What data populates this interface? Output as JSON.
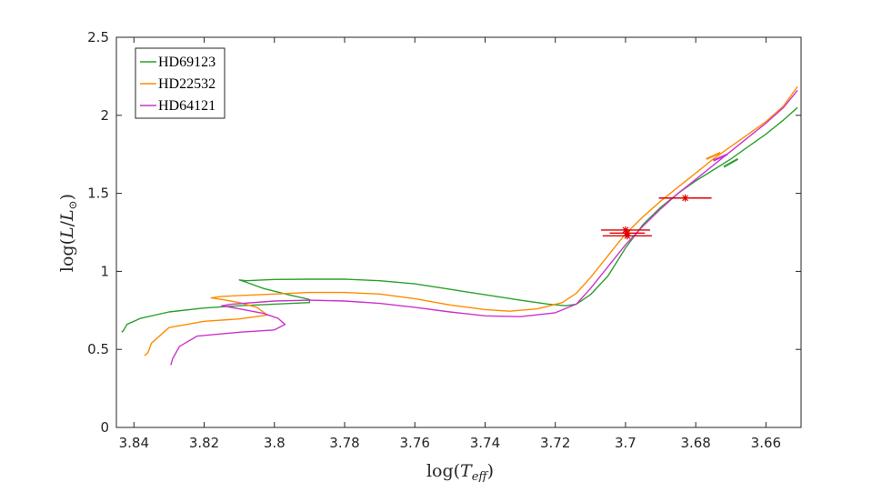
{
  "chart_data": {
    "type": "line",
    "title": "",
    "xlabel": "log(T_eff)",
    "ylabel": "log(L/L⊙)",
    "xlim": [
      3.65,
      3.845
    ],
    "ylim": [
      0,
      2.5
    ],
    "x_reversed": true,
    "xticks": [
      3.84,
      3.82,
      3.8,
      3.78,
      3.76,
      3.74,
      3.72,
      3.7,
      3.68,
      3.66
    ],
    "xtick_labels": [
      "3.84",
      "3.82",
      "3.8",
      "3.78",
      "3.76",
      "3.74",
      "3.72",
      "3.7",
      "3.68",
      "3.66"
    ],
    "yticks": [
      0,
      0.5,
      1,
      1.5,
      2,
      2.5
    ],
    "ytick_labels": [
      "0",
      "0.5",
      "1",
      "1.5",
      "2",
      "2.5"
    ],
    "grid": false,
    "legend_position": "top-left",
    "series": [
      {
        "name": "HD69123",
        "color": "#2ca02c",
        "x": [
          3.8435,
          3.843,
          3.842,
          3.838,
          3.83,
          3.82,
          3.81,
          3.79,
          3.79,
          3.796,
          3.803,
          3.808,
          3.81,
          3.808,
          3.8,
          3.79,
          3.78,
          3.77,
          3.76,
          3.75,
          3.74,
          3.73,
          3.722,
          3.717,
          3.714,
          3.71,
          3.705,
          3.7,
          3.695,
          3.69,
          3.685,
          3.68,
          3.675,
          3.67,
          3.665,
          3.66,
          3.655,
          3.651
        ],
        "y": [
          0.61,
          0.62,
          0.66,
          0.7,
          0.74,
          0.765,
          0.78,
          0.8,
          0.82,
          0.85,
          0.89,
          0.93,
          0.945,
          0.94,
          0.948,
          0.95,
          0.95,
          0.94,
          0.92,
          0.885,
          0.85,
          0.815,
          0.79,
          0.78,
          0.79,
          0.85,
          0.97,
          1.15,
          1.3,
          1.41,
          1.5,
          1.58,
          1.65,
          1.72,
          1.8,
          1.88,
          1.97,
          2.05
        ]
      },
      {
        "name": "HD22532",
        "color": "#ff8c00",
        "x": [
          3.837,
          3.836,
          3.835,
          3.83,
          3.82,
          3.81,
          3.802,
          3.805,
          3.81,
          3.815,
          3.818,
          3.815,
          3.8,
          3.79,
          3.78,
          3.77,
          3.76,
          3.75,
          3.74,
          3.733,
          3.725,
          3.718,
          3.714,
          3.71,
          3.705,
          3.7,
          3.695,
          3.69,
          3.685,
          3.68,
          3.675,
          3.67,
          3.665,
          3.66,
          3.655,
          3.651
        ],
        "y": [
          0.46,
          0.48,
          0.54,
          0.64,
          0.68,
          0.695,
          0.72,
          0.77,
          0.8,
          0.82,
          0.83,
          0.84,
          0.855,
          0.865,
          0.865,
          0.855,
          0.825,
          0.785,
          0.755,
          0.745,
          0.76,
          0.8,
          0.86,
          0.96,
          1.1,
          1.24,
          1.35,
          1.45,
          1.54,
          1.63,
          1.72,
          1.8,
          1.88,
          1.96,
          2.06,
          2.185
        ]
      },
      {
        "name": "HD64121",
        "color": "#cc33cc",
        "x": [
          3.8295,
          3.829,
          3.827,
          3.822,
          3.81,
          3.8,
          3.797,
          3.799,
          3.803,
          3.81,
          3.815,
          3.812,
          3.8,
          3.79,
          3.78,
          3.77,
          3.76,
          3.75,
          3.74,
          3.73,
          3.72,
          3.714,
          3.71,
          3.705,
          3.7,
          3.695,
          3.69,
          3.685,
          3.68,
          3.675,
          3.67,
          3.665,
          3.66,
          3.655,
          3.651
        ],
        "y": [
          0.4,
          0.44,
          0.52,
          0.585,
          0.61,
          0.625,
          0.66,
          0.7,
          0.73,
          0.76,
          0.78,
          0.79,
          0.81,
          0.815,
          0.81,
          0.795,
          0.77,
          0.74,
          0.715,
          0.71,
          0.735,
          0.79,
          0.89,
          1.03,
          1.17,
          1.29,
          1.4,
          1.5,
          1.59,
          1.68,
          1.77,
          1.86,
          1.95,
          2.05,
          2.16
        ]
      }
    ],
    "track_ticks": [
      {
        "series": "HD69123",
        "color": "#2ca02c",
        "x": [
          3.672,
          3.668
        ],
        "y": [
          1.67,
          1.72
        ]
      },
      {
        "series": "HD22532",
        "color": "#ff8c00",
        "x": [
          3.677,
          3.673
        ],
        "y": [
          1.72,
          1.76
        ]
      },
      {
        "series": "HD64121",
        "color": "#cc33cc",
        "x": [
          3.675,
          3.671
        ],
        "y": [
          1.71,
          1.75
        ]
      }
    ],
    "observations": [
      {
        "x": 3.7,
        "y": 1.265,
        "xerr": 0.007,
        "color": "#dd0000"
      },
      {
        "x": 3.6995,
        "y": 1.245,
        "xerr": 0.005,
        "color": "#dd0000"
      },
      {
        "x": 3.6995,
        "y": 1.228,
        "xerr": 0.007,
        "color": "#dd0000"
      },
      {
        "x": 3.683,
        "y": 1.47,
        "xerr": 0.0075,
        "color": "#dd0000"
      }
    ]
  }
}
